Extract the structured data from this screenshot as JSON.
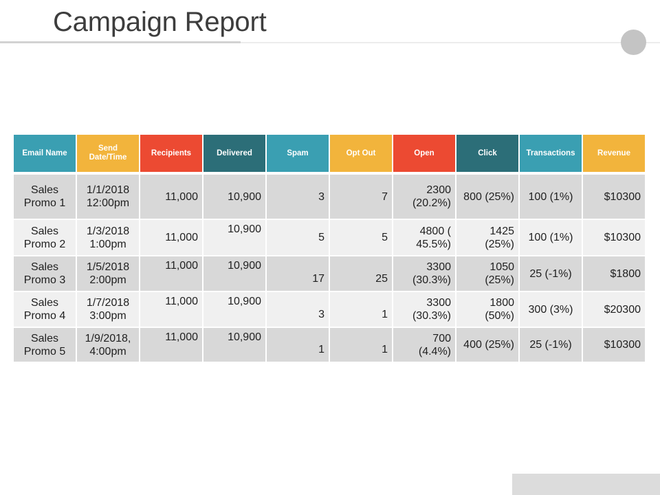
{
  "page": {
    "title": "Campaign Report"
  },
  "colors": {
    "teal": "#3a9fb2",
    "dark_teal": "#2c6e78",
    "yellow": "#f2b43c",
    "red": "#ec4a32"
  },
  "table": {
    "headers": [
      {
        "label": "Email Name",
        "color": "#3a9fb2"
      },
      {
        "label": "Send Date/Time",
        "color": "#f2b43c"
      },
      {
        "label": "Recipients",
        "color": "#ec4a32"
      },
      {
        "label": "Delivered",
        "color": "#2c6e78"
      },
      {
        "label": "Spam",
        "color": "#3a9fb2"
      },
      {
        "label": "Opt Out",
        "color": "#f2b43c"
      },
      {
        "label": "Open",
        "color": "#ec4a32"
      },
      {
        "label": "Click",
        "color": "#2c6e78"
      },
      {
        "label": "Transactions",
        "color": "#3a9fb2"
      },
      {
        "label": "Revenue",
        "color": "#f2b43c"
      }
    ],
    "rows": [
      {
        "email_name": "Sales Promo 1",
        "send_datetime": "1/1/2018 12:00pm",
        "recipients": "11,000",
        "delivered": "10,900",
        "spam": "3",
        "opt_out": "7",
        "open": "2300 (20.2%)",
        "click": "800 (25%)",
        "transactions": "100 (1%)",
        "revenue": "$10300"
      },
      {
        "email_name": "Sales Promo 2",
        "send_datetime": "1/3/2018 1:00pm",
        "recipients": "11,000",
        "delivered": "10,900",
        "spam": "5",
        "opt_out": "5",
        "open": "4800 ( 45.5%)",
        "click": "1425 (25%)",
        "transactions": "100 (1%)",
        "revenue": "$10300"
      },
      {
        "email_name": "Sales Promo 3",
        "send_datetime": "1/5/2018 2:00pm",
        "recipients": "11,000",
        "delivered": "10,900",
        "spam": "17",
        "opt_out": "25",
        "open": "3300 (30.3%)",
        "click": "1050 (25%)",
        "transactions": "25 (-1%)",
        "revenue": "$1800"
      },
      {
        "email_name": "Sales Promo 4",
        "send_datetime": "1/7/2018 3:00pm",
        "recipients": "11,000",
        "delivered": "10,900",
        "spam": "3",
        "opt_out": "1",
        "open": "3300 (30.3%)",
        "click": "1800 (50%)",
        "transactions": "300 (3%)",
        "revenue": "$20300"
      },
      {
        "email_name": "Sales Promo 5",
        "send_datetime": "1/9/2018, 4:00pm",
        "recipients": "11,000",
        "delivered": "10,900",
        "spam": "1",
        "opt_out": "1",
        "open": "700 (4.4%)",
        "click": "400 (25%)",
        "transactions": "25 (-1%)",
        "revenue": "$10300"
      }
    ]
  }
}
